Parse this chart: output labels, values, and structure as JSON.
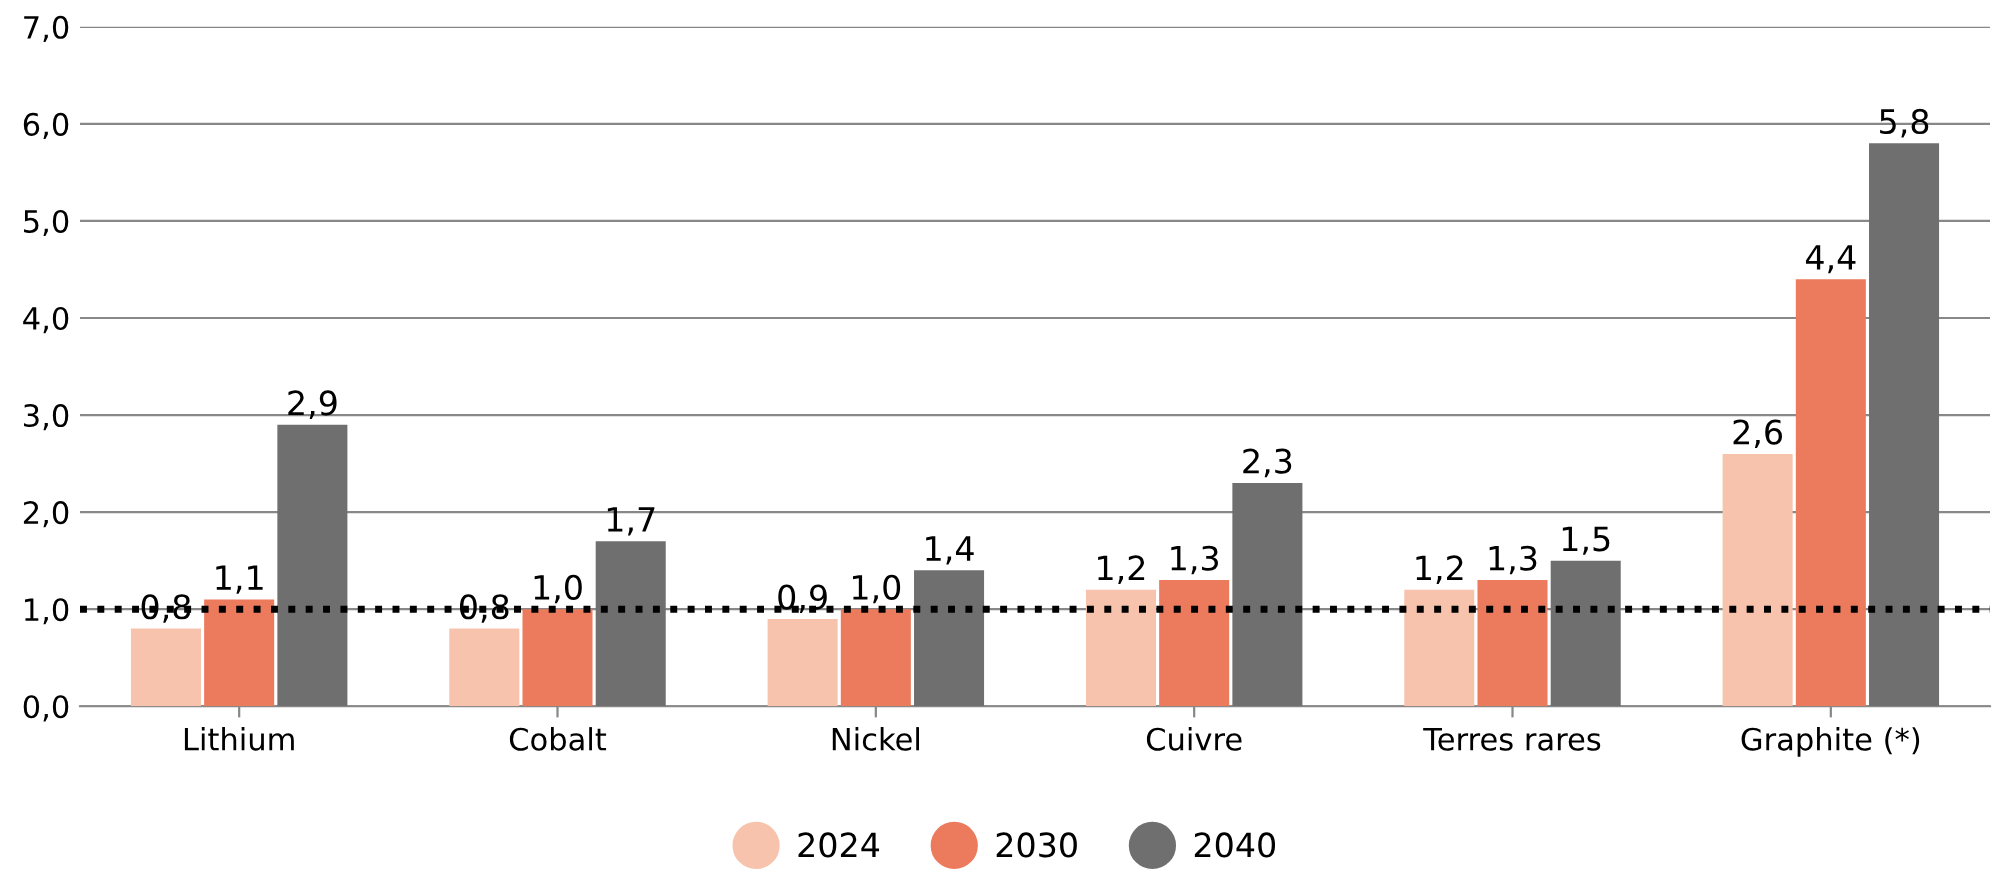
{
  "chart_data": {
    "type": "bar",
    "categories": [
      "Lithium",
      "Cobalt",
      "Nickel",
      "Cuivre",
      "Terres rares",
      "Graphite (*)"
    ],
    "series": [
      {
        "name": "2024",
        "color": "#f7c3ad",
        "values": [
          0.8,
          0.8,
          0.9,
          1.2,
          1.2,
          2.6
        ],
        "value_labels": [
          "0,8",
          "0,8",
          "0,9",
          "1,2",
          "1,2",
          "2,6"
        ]
      },
      {
        "name": "2030",
        "color": "#ec7a5c",
        "values": [
          1.1,
          1.0,
          1.0,
          1.3,
          1.3,
          4.4
        ],
        "value_labels": [
          "1,1",
          "1,0",
          "1,0",
          "1,3",
          "1,3",
          "4,4"
        ]
      },
      {
        "name": "2040",
        "color": "#6f6f6f",
        "values": [
          2.9,
          1.7,
          1.4,
          2.3,
          1.5,
          5.8
        ],
        "value_labels": [
          "2,9",
          "1,7",
          "1,4",
          "2,3",
          "1,5",
          "5,8"
        ]
      }
    ],
    "ylim": [
      0,
      7
    ],
    "yticks": [
      {
        "value": 0,
        "label": "0,0"
      },
      {
        "value": 1,
        "label": "1,0"
      },
      {
        "value": 2,
        "label": "2,0"
      },
      {
        "value": 3,
        "label": "3,0"
      },
      {
        "value": 4,
        "label": "4,0"
      },
      {
        "value": 5,
        "label": "5,0"
      },
      {
        "value": 6,
        "label": "6,0"
      },
      {
        "value": 7,
        "label": "7,0"
      }
    ],
    "ref_lines": [
      {
        "axis": "y",
        "value": 1.0,
        "color": "#000000",
        "line_style": "dotted"
      }
    ],
    "grid": "y",
    "legend": "bottom",
    "marker": "circle"
  }
}
